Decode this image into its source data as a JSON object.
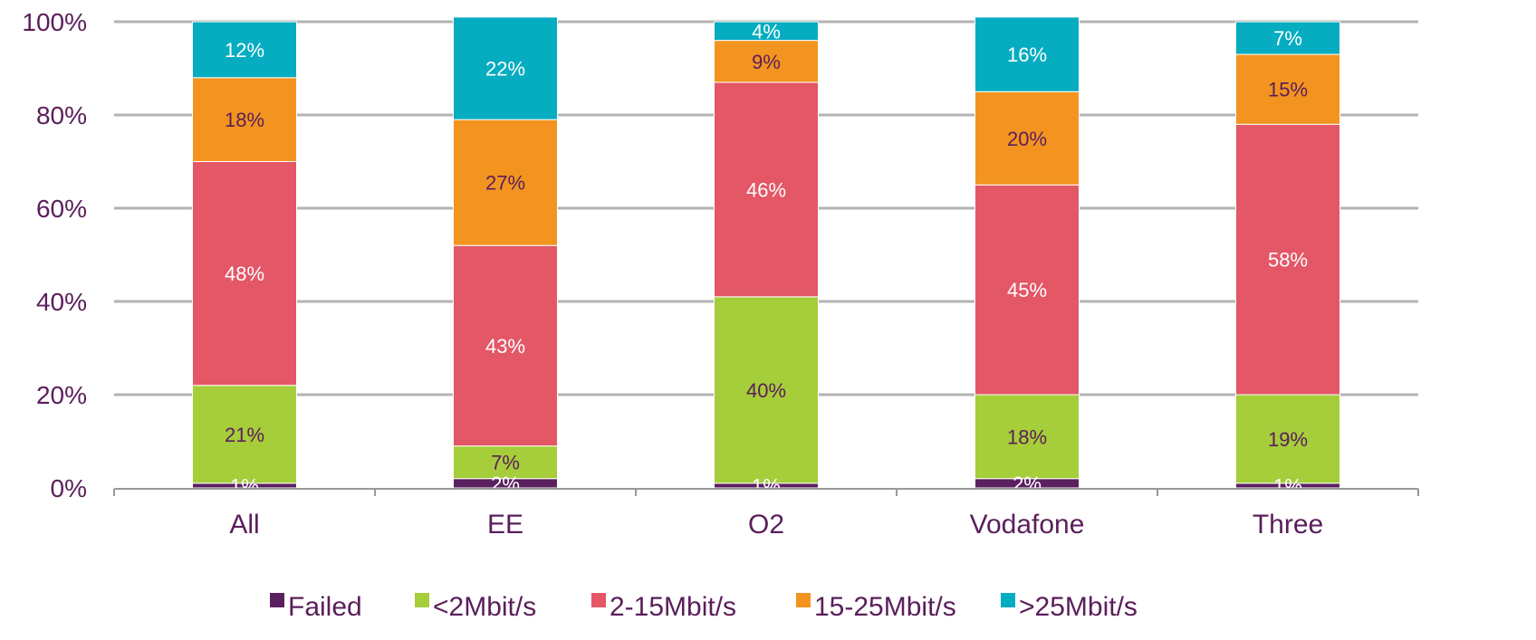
{
  "chart_data": {
    "type": "bar",
    "stacked": true,
    "categories": [
      "All",
      "EE",
      "O2",
      "Vodafone",
      "Three"
    ],
    "ylim": [
      0,
      100
    ],
    "yticks": [
      "0%",
      "20%",
      "40%",
      "60%",
      "80%",
      "100%"
    ],
    "ytick_values": [
      0,
      20,
      40,
      60,
      80,
      100
    ],
    "grid": true,
    "legend_position": "bottom",
    "series": [
      {
        "name": "Failed",
        "color": "#5b2060",
        "values": [
          1,
          2,
          1,
          2,
          1
        ],
        "labels": [
          "1%",
          "2%",
          "1%",
          "2%",
          "1%"
        ],
        "label_color": "#ffffff"
      },
      {
        "name": "<2Mbit/s",
        "color": "#a6cd3a",
        "values": [
          21,
          7,
          40,
          18,
          19
        ],
        "labels": [
          "21%",
          "7%",
          "40%",
          "18%",
          "19%"
        ],
        "label_color": "#5a1e5a"
      },
      {
        "name": "2-15Mbit/s",
        "color": "#e35766",
        "values": [
          48,
          43,
          46,
          45,
          58
        ],
        "labels": [
          "48%",
          "43%",
          "46%",
          "45%",
          "58%"
        ],
        "label_color": "#ffffff"
      },
      {
        "name": "15-25Mbit/s",
        "color": "#f39420",
        "values": [
          18,
          27,
          9,
          20,
          15
        ],
        "labels": [
          "18%",
          "27%",
          "9%",
          "20%",
          "15%"
        ],
        "label_color": "#5a1e5a"
      },
      {
        "name": ">25Mbit/s",
        "color": "#06acc0",
        "values": [
          12,
          22,
          4,
          16,
          7
        ],
        "labels": [
          "12%",
          "22%",
          "4%",
          "16%",
          "7%"
        ],
        "label_color": "#ffffff"
      }
    ],
    "colors": {
      "text": "#5a1e5a",
      "grid": "#b3b3b3",
      "axis": "#999999"
    }
  }
}
